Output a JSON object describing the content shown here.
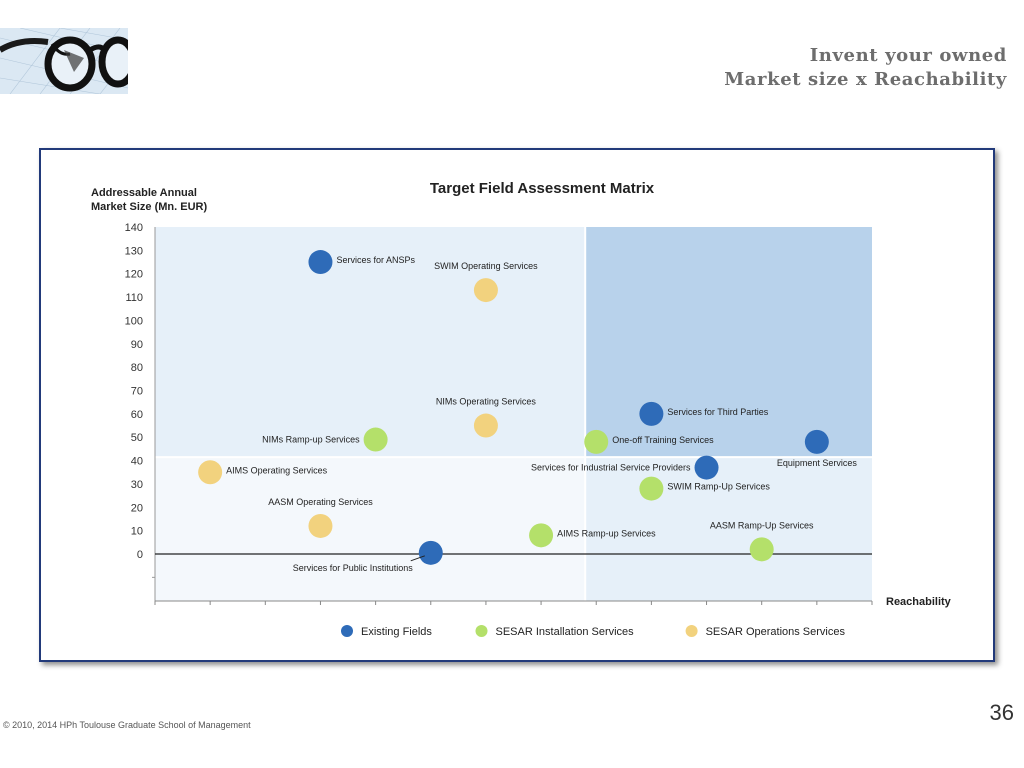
{
  "slide": {
    "title_line1": "Invent your owned",
    "title_line2": "Market size x Reachability",
    "footer": "© 2010, 2014 HPh Toulouse Graduate School of Management",
    "page_number": "36"
  },
  "colors": {
    "existing": "#2e6bb8",
    "installation": "#b4e06a",
    "operations": "#f2d27e",
    "quadrant_light": "#e6f0f9",
    "quadrant_dark": "#b8d2eb",
    "quadrant_pale": "#f4f8fc",
    "frame": "#223a7a"
  },
  "chart_data": {
    "type": "scatter",
    "title": "Target Field Assessment Matrix",
    "ylabel_line1": "Addressable Annual",
    "ylabel_line2": "Market Size (Mn. EUR)",
    "xlabel": "Reachability",
    "ylim": [
      0,
      140
    ],
    "y_ticks": [
      "140",
      "130",
      "120",
      "110",
      "100",
      "90",
      "80",
      "70",
      "60",
      "50",
      "40",
      "30",
      "20",
      "10",
      "0"
    ],
    "xlim": [
      0,
      13
    ],
    "x_tick_count": 13,
    "quadrant_split": {
      "x": 7.8,
      "y": 41.5
    },
    "legend_position": "bottom",
    "legend": [
      {
        "key": "existing",
        "label": "Existing Fields"
      },
      {
        "key": "installation",
        "label": "SESAR Installation Services"
      },
      {
        "key": "operations",
        "label": "SESAR Operations Services"
      }
    ],
    "points": [
      {
        "label": "Services for ANSPs",
        "x": 3.0,
        "y": 125,
        "series": "existing",
        "label_pos": "right"
      },
      {
        "label": "SWIM Operating Services",
        "x": 6.0,
        "y": 113,
        "series": "operations",
        "label_pos": "above"
      },
      {
        "label": "NIMs Operating Services",
        "x": 6.0,
        "y": 55,
        "series": "operations",
        "label_pos": "above"
      },
      {
        "label": "NIMs Ramp-up Services",
        "x": 4.0,
        "y": 49,
        "series": "installation",
        "label_pos": "left"
      },
      {
        "label": "AIMS Operating Services",
        "x": 1.0,
        "y": 35,
        "series": "operations",
        "label_pos": "right"
      },
      {
        "label": "AASM Operating Services",
        "x": 3.0,
        "y": 12,
        "series": "operations",
        "label_pos": "above"
      },
      {
        "label": "Services for Public Institutions",
        "x": 5.0,
        "y": 0.5,
        "series": "existing",
        "label_pos": "below-left"
      },
      {
        "label": "AIMS Ramp-up Services",
        "x": 7.0,
        "y": 8,
        "series": "installation",
        "label_pos": "right"
      },
      {
        "label": "One-off Training Services",
        "x": 8.0,
        "y": 48,
        "series": "installation",
        "label_pos": "right"
      },
      {
        "label": "Services for Third Parties",
        "x": 9.0,
        "y": 60,
        "series": "existing",
        "label_pos": "right"
      },
      {
        "label": "Services for Industrial Service Providers",
        "x": 10.0,
        "y": 37,
        "series": "existing",
        "label_pos": "left"
      },
      {
        "label": "SWIM Ramp-Up Services",
        "x": 9.0,
        "y": 28,
        "series": "installation",
        "label_pos": "right"
      },
      {
        "label": "Equipment Services",
        "x": 12.0,
        "y": 48,
        "series": "existing",
        "label_pos": "below"
      },
      {
        "label": "AASM Ramp-Up Services",
        "x": 11.0,
        "y": 2,
        "series": "installation",
        "label_pos": "above"
      }
    ]
  }
}
